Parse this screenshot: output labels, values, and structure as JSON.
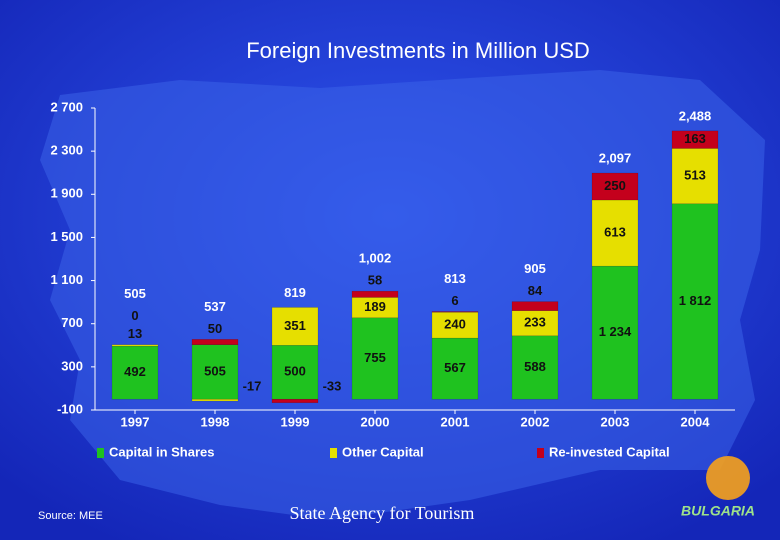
{
  "chart_data": {
    "type": "stacked_bar",
    "title": "Foreign Investments in Million USD",
    "categories": [
      "1997",
      "1998",
      "1999",
      "2000",
      "2001",
      "2002",
      "2003",
      "2004"
    ],
    "series": [
      {
        "name": "Capital in Shares",
        "color": "#1fc21f",
        "values": [
          492,
          505,
          500,
          755,
          567,
          588,
          1234,
          1812
        ],
        "value_labels": [
          "492",
          "505",
          "500",
          "755",
          "567",
          "588",
          "1 234",
          "1 812"
        ]
      },
      {
        "name": "Other Capital",
        "color": "#e6df00",
        "values": [
          13,
          -17,
          351,
          189,
          240,
          233,
          613,
          513
        ]
      },
      {
        "name": "Re-invested Capital",
        "color": "#c4001c",
        "values": [
          0,
          50,
          -33,
          58,
          6,
          84,
          250,
          163
        ]
      }
    ],
    "totals": {
      "values": [
        505,
        537,
        819,
        1002,
        813,
        905,
        2097,
        2488
      ],
      "value_labels": [
        "505",
        "537",
        "819",
        "1,002",
        "813",
        "905",
        "2,097",
        "2,488"
      ]
    },
    "ylim": [
      -100,
      2700
    ],
    "yticks": [
      -100,
      300,
      700,
      {
        "value": 1100,
        "label": "1 100"
      },
      {
        "value": 1500,
        "label": "1 500"
      },
      {
        "value": 1900,
        "label": "1 900"
      },
      {
        "value": 2300,
        "label": "2 300"
      },
      {
        "value": 2700,
        "label": "2 700"
      }
    ],
    "legend": "bottom"
  },
  "footer": {
    "source": "Source: MEE",
    "agency": "State Agency for Tourism",
    "logo": "BULGARIA"
  }
}
